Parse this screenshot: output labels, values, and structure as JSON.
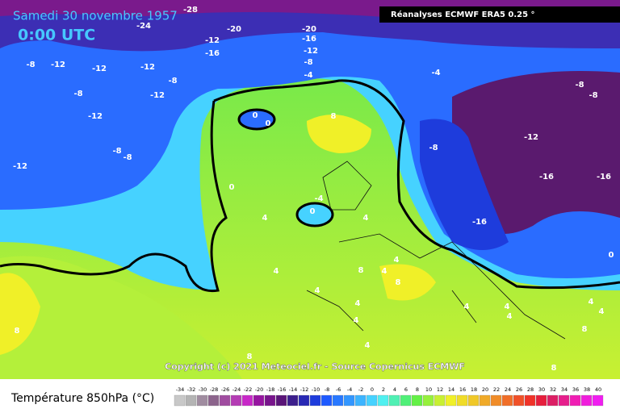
{
  "header": {
    "date": "Samedi 30 novembre 1957",
    "time": "0:00 UTC",
    "source_box": "Réanalyses ECMWF ERA5 0.25 °"
  },
  "copyright": "Copyright (c) 2021 Meteociel.fr - Source Copernicus ECMWF",
  "legend": {
    "title": "Température 850hPa (°C)",
    "values": [
      -34,
      -32,
      -30,
      -28,
      -26,
      -24,
      -22,
      -20,
      -18,
      -16,
      -14,
      -12,
      -10,
      -8,
      -6,
      -4,
      -2,
      0,
      2,
      4,
      6,
      8,
      10,
      12,
      14,
      16,
      18,
      20,
      22,
      24,
      26,
      28,
      30,
      32,
      34,
      36,
      38,
      40
    ],
    "colors": [
      "#c8c8c8",
      "#b4b4b4",
      "#a08ca0",
      "#8c648c",
      "#a04ca0",
      "#b43cb4",
      "#c828c8",
      "#9614a0",
      "#78148c",
      "#5a1478",
      "#3c1e8c",
      "#2828b4",
      "#1e3cdc",
      "#1e5aff",
      "#2878ff",
      "#3296ff",
      "#3cb4ff",
      "#46d2ff",
      "#50f0f0",
      "#50f0b4",
      "#50f078",
      "#64f046",
      "#96f03c",
      "#c8f032",
      "#f0f028",
      "#f0dc28",
      "#f0c828",
      "#f0aa28",
      "#f08c28",
      "#f06e28",
      "#f05028",
      "#f03228",
      "#e61e3c",
      "#dc1e64",
      "#e61e8c",
      "#f01eb4",
      "#f01edc",
      "#f01ef0"
    ]
  },
  "map_labels": [
    -24,
    -28,
    -20,
    -20,
    -16,
    -12,
    -16,
    -12,
    -8,
    -4,
    -8,
    -12,
    -12,
    -12,
    -8,
    -12,
    -8,
    -12,
    -8,
    -8,
    -12,
    0,
    0,
    8,
    -4,
    -8,
    -8,
    -8,
    -12,
    -16,
    -16,
    -16,
    0,
    4,
    -4,
    0,
    4,
    4,
    8,
    4,
    4,
    8,
    4,
    4,
    4,
    4,
    4,
    4,
    4,
    4,
    8,
    8,
    8,
    4,
    8,
    0
  ]
}
